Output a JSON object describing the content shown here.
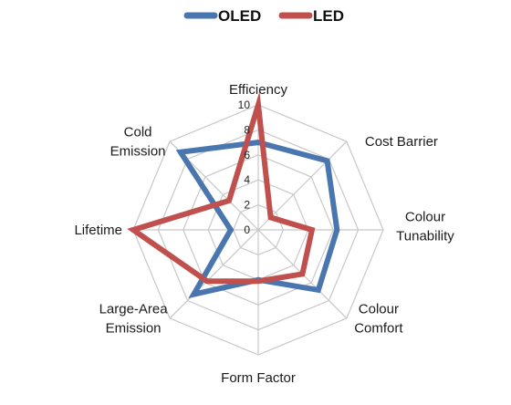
{
  "chart_data": {
    "type": "radar",
    "axes": [
      "Efficiency",
      "Cost Barrier",
      "Colour Tunability",
      "Colour Comfort",
      "Form Factor",
      "Large-Area Emission",
      "Lifetime",
      "Cold Emission"
    ],
    "axis_label_lines": [
      [
        "Efficiency"
      ],
      [
        "Cost Barrier"
      ],
      [
        "Colour",
        "Tunability"
      ],
      [
        "Colour",
        "Comfort"
      ],
      [
        "Form Factor"
      ],
      [
        "Large-Area",
        "Emission"
      ],
      [
        "Lifetime"
      ],
      [
        "Cold",
        "Emission"
      ]
    ],
    "rlim": [
      0,
      10
    ],
    "ticks": [
      "0",
      "2",
      "4",
      "6",
      "8",
      "10"
    ],
    "grid": true,
    "legend_position": "top",
    "series": [
      {
        "name": "OLED",
        "color": "#4a76b0",
        "values": [
          7,
          7.8,
          6.3,
          6.8,
          4,
          7.3,
          2.2,
          8.8
        ]
      },
      {
        "name": "LED",
        "color": "#c0504d",
        "values": [
          10,
          1.4,
          4.3,
          5,
          4.1,
          5.8,
          10,
          3.3
        ]
      }
    ]
  }
}
